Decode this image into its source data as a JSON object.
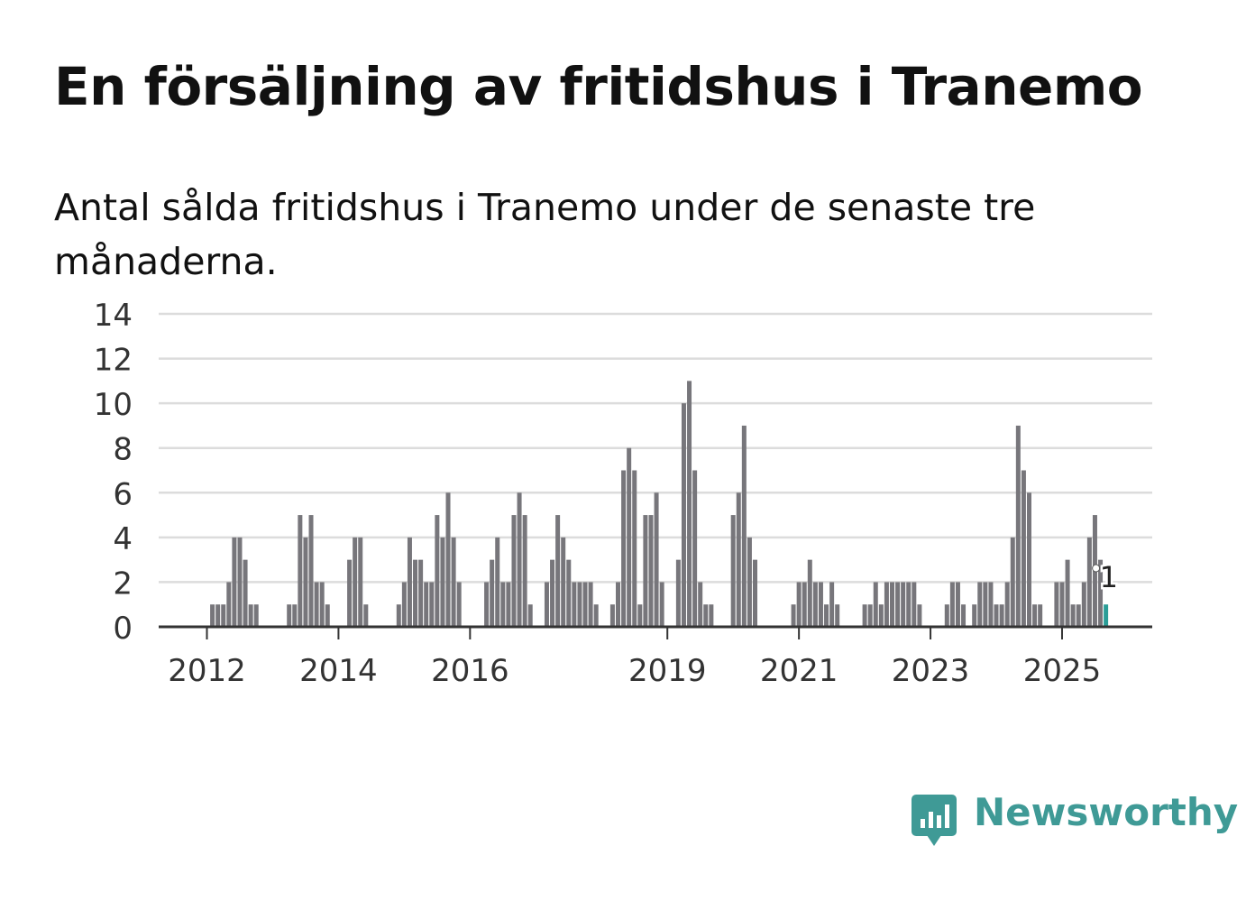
{
  "title": "En försäljning av fritidshus i Tranemo",
  "subtitle": "Antal sålda fritidshus i Tranemo under de senaste tre månaderna.",
  "brand": {
    "name": "Newsworthy",
    "color": "#3f9a96"
  },
  "colors": {
    "bar": "#77767b",
    "highlight": "#2a9d97",
    "grid": "#dcdcdc",
    "axis": "#333333"
  },
  "chart_data": {
    "type": "bar",
    "ylim": [
      0,
      14
    ],
    "yticks": [
      0,
      2,
      4,
      6,
      8,
      10,
      12,
      14
    ],
    "xticks": [
      "2012",
      "2014",
      "2016",
      "2019",
      "2021",
      "2023",
      "2025"
    ],
    "grid": true,
    "annotation": {
      "label": "1",
      "x": "2025-09",
      "value": 1
    },
    "series": [
      {
        "values": [
          [
            "2011-10",
            0
          ],
          [
            "2011-11",
            0
          ],
          [
            "2011-12",
            0
          ],
          [
            "2012-01",
            0
          ],
          [
            "2012-02",
            1
          ],
          [
            "2012-03",
            1
          ],
          [
            "2012-04",
            1
          ],
          [
            "2012-05",
            2
          ],
          [
            "2012-06",
            4
          ],
          [
            "2012-07",
            4
          ],
          [
            "2012-08",
            3
          ],
          [
            "2012-09",
            1
          ],
          [
            "2012-10",
            1
          ],
          [
            "2012-11",
            0
          ],
          [
            "2012-12",
            0
          ],
          [
            "2013-01",
            0
          ],
          [
            "2013-02",
            0
          ],
          [
            "2013-03",
            0
          ],
          [
            "2013-04",
            1
          ],
          [
            "2013-05",
            1
          ],
          [
            "2013-06",
            5
          ],
          [
            "2013-07",
            4
          ],
          [
            "2013-08",
            5
          ],
          [
            "2013-09",
            2
          ],
          [
            "2013-10",
            2
          ],
          [
            "2013-11",
            1
          ],
          [
            "2013-12",
            0
          ],
          [
            "2014-01",
            0
          ],
          [
            "2014-02",
            0
          ],
          [
            "2014-03",
            3
          ],
          [
            "2014-04",
            4
          ],
          [
            "2014-05",
            4
          ],
          [
            "2014-06",
            1
          ],
          [
            "2014-07",
            0
          ],
          [
            "2014-08",
            0
          ],
          [
            "2014-09",
            0
          ],
          [
            "2014-10",
            0
          ],
          [
            "2014-11",
            0
          ],
          [
            "2014-12",
            1
          ],
          [
            "2015-01",
            2
          ],
          [
            "2015-02",
            4
          ],
          [
            "2015-03",
            3
          ],
          [
            "2015-04",
            3
          ],
          [
            "2015-05",
            2
          ],
          [
            "2015-06",
            2
          ],
          [
            "2015-07",
            5
          ],
          [
            "2015-08",
            4
          ],
          [
            "2015-09",
            6
          ],
          [
            "2015-10",
            4
          ],
          [
            "2015-11",
            2
          ],
          [
            "2015-12",
            0
          ],
          [
            "2016-01",
            0
          ],
          [
            "2016-02",
            0
          ],
          [
            "2016-03",
            0
          ],
          [
            "2016-04",
            2
          ],
          [
            "2016-05",
            3
          ],
          [
            "2016-06",
            4
          ],
          [
            "2016-07",
            2
          ],
          [
            "2016-08",
            2
          ],
          [
            "2016-09",
            5
          ],
          [
            "2016-10",
            6
          ],
          [
            "2016-11",
            5
          ],
          [
            "2016-12",
            1
          ],
          [
            "2017-01",
            0
          ],
          [
            "2017-02",
            0
          ],
          [
            "2017-03",
            2
          ],
          [
            "2017-04",
            3
          ],
          [
            "2017-05",
            5
          ],
          [
            "2017-06",
            4
          ],
          [
            "2017-07",
            3
          ],
          [
            "2017-08",
            2
          ],
          [
            "2017-09",
            2
          ],
          [
            "2017-10",
            2
          ],
          [
            "2017-11",
            2
          ],
          [
            "2017-12",
            1
          ],
          [
            "2018-01",
            0
          ],
          [
            "2018-02",
            0
          ],
          [
            "2018-03",
            1
          ],
          [
            "2018-04",
            2
          ],
          [
            "2018-05",
            7
          ],
          [
            "2018-06",
            8
          ],
          [
            "2018-07",
            7
          ],
          [
            "2018-08",
            1
          ],
          [
            "2018-09",
            5
          ],
          [
            "2018-10",
            5
          ],
          [
            "2018-11",
            6
          ],
          [
            "2018-12",
            2
          ],
          [
            "2019-01",
            0
          ],
          [
            "2019-02",
            0
          ],
          [
            "2019-03",
            3
          ],
          [
            "2019-04",
            10
          ],
          [
            "2019-05",
            11
          ],
          [
            "2019-06",
            7
          ],
          [
            "2019-07",
            2
          ],
          [
            "2019-08",
            1
          ],
          [
            "2019-09",
            1
          ],
          [
            "2019-10",
            0
          ],
          [
            "2019-11",
            0
          ],
          [
            "2019-12",
            0
          ],
          [
            "2020-01",
            5
          ],
          [
            "2020-02",
            6
          ],
          [
            "2020-03",
            9
          ],
          [
            "2020-04",
            4
          ],
          [
            "2020-05",
            3
          ],
          [
            "2020-06",
            0
          ],
          [
            "2020-07",
            0
          ],
          [
            "2020-08",
            0
          ],
          [
            "2020-09",
            0
          ],
          [
            "2020-10",
            0
          ],
          [
            "2020-11",
            0
          ],
          [
            "2020-12",
            1
          ],
          [
            "2021-01",
            2
          ],
          [
            "2021-02",
            2
          ],
          [
            "2021-03",
            3
          ],
          [
            "2021-04",
            2
          ],
          [
            "2021-05",
            2
          ],
          [
            "2021-06",
            1
          ],
          [
            "2021-07",
            2
          ],
          [
            "2021-08",
            1
          ],
          [
            "2021-09",
            0
          ],
          [
            "2021-10",
            0
          ],
          [
            "2021-11",
            0
          ],
          [
            "2021-12",
            0
          ],
          [
            "2022-01",
            1
          ],
          [
            "2022-02",
            1
          ],
          [
            "2022-03",
            2
          ],
          [
            "2022-04",
            1
          ],
          [
            "2022-05",
            2
          ],
          [
            "2022-06",
            2
          ],
          [
            "2022-07",
            2
          ],
          [
            "2022-08",
            2
          ],
          [
            "2022-09",
            2
          ],
          [
            "2022-10",
            2
          ],
          [
            "2022-11",
            1
          ],
          [
            "2022-12",
            0
          ],
          [
            "2023-01",
            0
          ],
          [
            "2023-02",
            0
          ],
          [
            "2023-03",
            0
          ],
          [
            "2023-04",
            1
          ],
          [
            "2023-05",
            2
          ],
          [
            "2023-06",
            2
          ],
          [
            "2023-07",
            1
          ],
          [
            "2023-08",
            0
          ],
          [
            "2023-09",
            1
          ],
          [
            "2023-10",
            2
          ],
          [
            "2023-11",
            2
          ],
          [
            "2023-12",
            2
          ],
          [
            "2024-01",
            1
          ],
          [
            "2024-02",
            1
          ],
          [
            "2024-03",
            2
          ],
          [
            "2024-04",
            4
          ],
          [
            "2024-05",
            9
          ],
          [
            "2024-06",
            7
          ],
          [
            "2024-07",
            6
          ],
          [
            "2024-08",
            1
          ],
          [
            "2024-09",
            1
          ],
          [
            "2024-10",
            0
          ],
          [
            "2024-11",
            0
          ],
          [
            "2024-12",
            2
          ],
          [
            "2025-01",
            2
          ],
          [
            "2025-02",
            3
          ],
          [
            "2025-03",
            1
          ],
          [
            "2025-04",
            1
          ],
          [
            "2025-05",
            2
          ],
          [
            "2025-06",
            4
          ],
          [
            "2025-07",
            5
          ],
          [
            "2025-08",
            3
          ],
          [
            "2025-09",
            1
          ]
        ]
      }
    ]
  }
}
